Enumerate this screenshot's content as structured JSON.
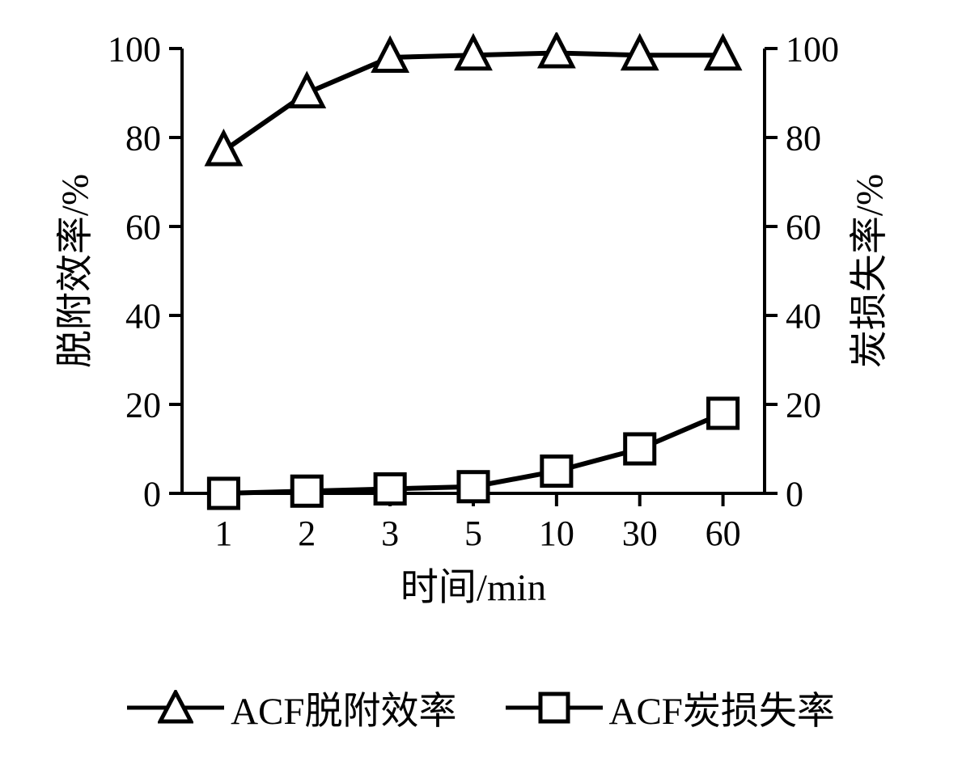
{
  "chart": {
    "type": "line",
    "x_categories": [
      "1",
      "2",
      "3",
      "5",
      "10",
      "30",
      "60"
    ],
    "series": [
      {
        "key": "desorption",
        "label": "ACF脱附效率",
        "marker": "triangle",
        "values": [
          77,
          90,
          98,
          98.5,
          99,
          98.5,
          98.5
        ]
      },
      {
        "key": "loss",
        "label": "ACF炭损失率",
        "marker": "square",
        "values": [
          0,
          0.5,
          1,
          1.5,
          5,
          10,
          18
        ]
      }
    ],
    "y_left": {
      "label": "脱附效率/%",
      "min": 0,
      "max": 100,
      "step": 20
    },
    "y_right": {
      "label": "炭损失率/%",
      "min": 0,
      "max": 100,
      "step": 20
    },
    "x_label": "时间/min",
    "colors": {
      "line": "#000000",
      "marker_stroke": "#000000",
      "marker_fill": "#ffffff",
      "axis": "#000000",
      "tick": "#000000",
      "text": "#000000",
      "background": "#ffffff"
    },
    "line_width": 6,
    "marker_size": 44,
    "marker_stroke_width": 5,
    "axis_width": 4,
    "axis_fontsize": 44,
    "label_fontsize": 47,
    "legend_fontsize": 47,
    "tick_len": 16
  }
}
